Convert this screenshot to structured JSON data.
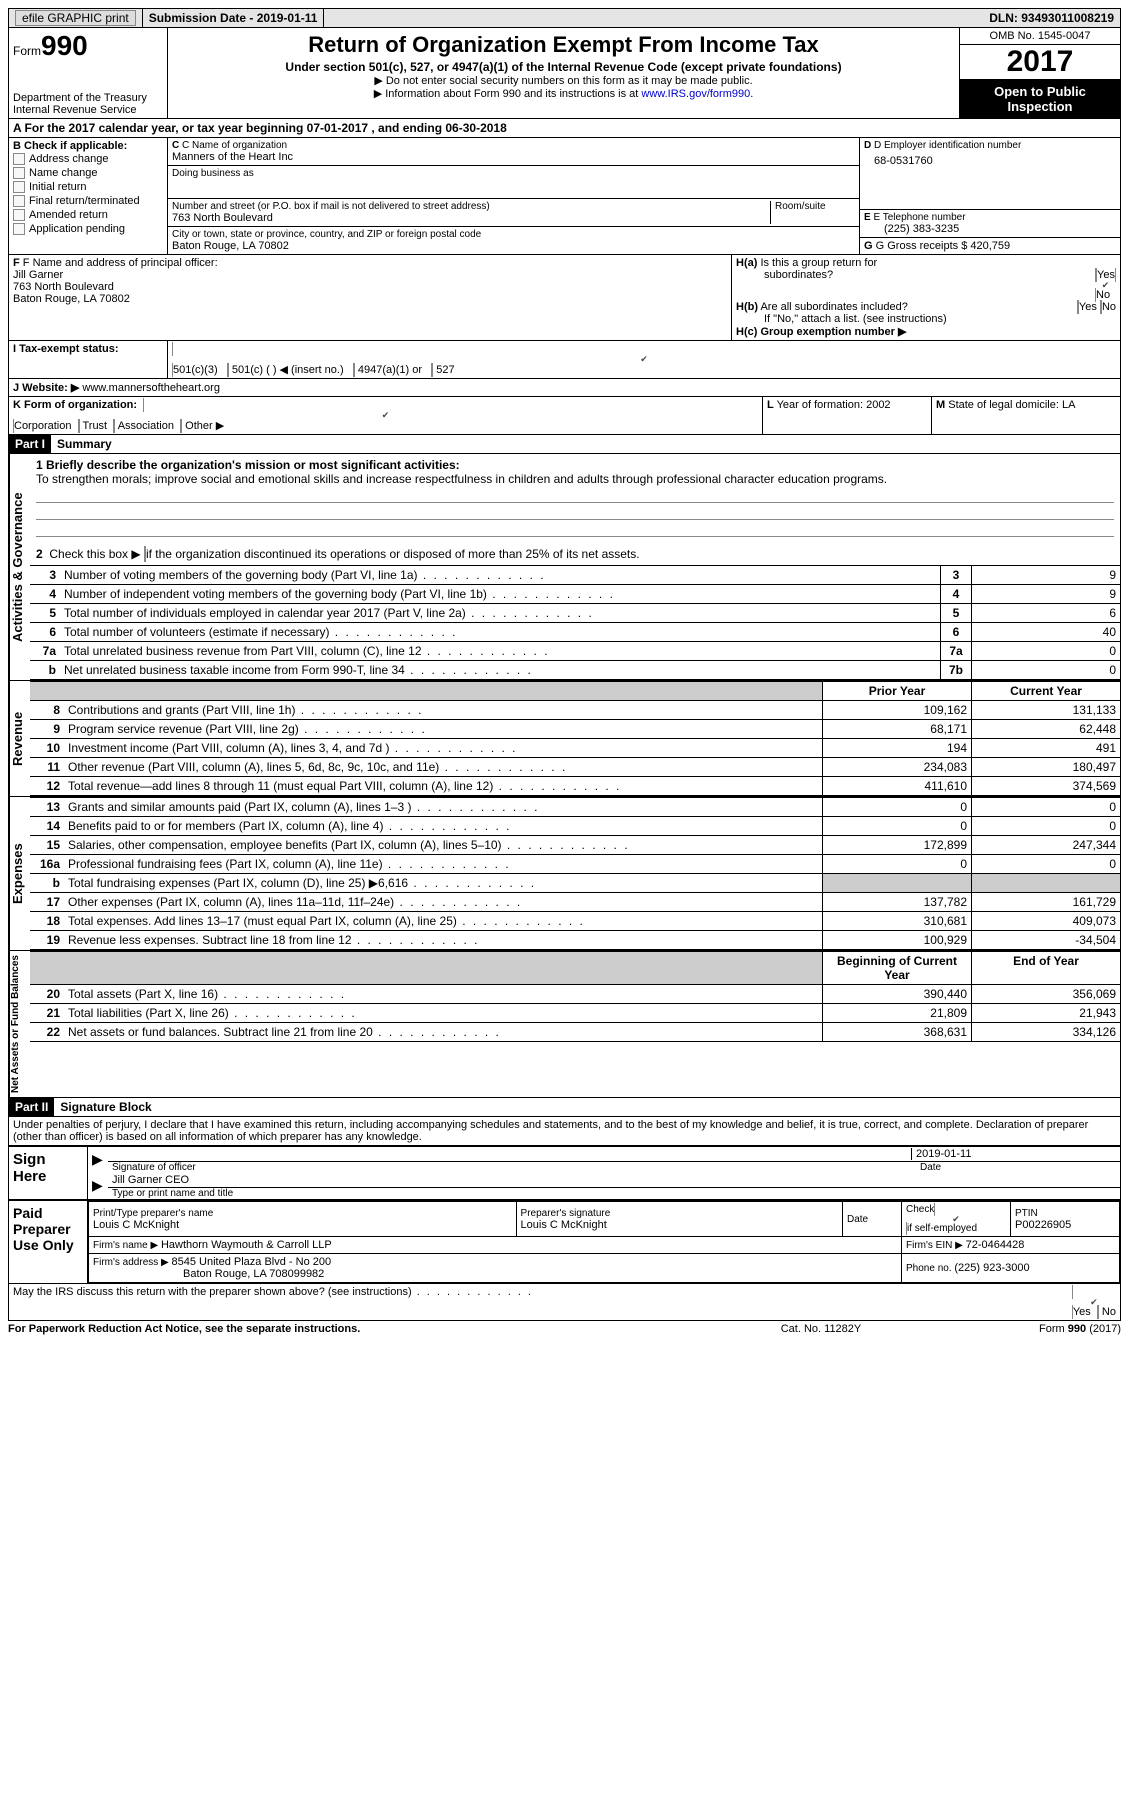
{
  "top": {
    "efile": "efile GRAPHIC print",
    "submission_label": "Submission Date - ",
    "submission_date": "2019-01-11",
    "dln_label": "DLN: ",
    "dln": "93493011008219"
  },
  "header": {
    "form_word": "Form",
    "form_num": "990",
    "dept": "Department of the Treasury",
    "irs": "Internal Revenue Service",
    "title": "Return of Organization Exempt From Income Tax",
    "subtitle": "Under section 501(c), 527, or 4947(a)(1) of the Internal Revenue Code (except private foundations)",
    "note1": "▶ Do not enter social security numbers on this form as it may be made public.",
    "note2_pre": "▶ Information about Form 990 and its instructions is at ",
    "note2_link": "www.IRS.gov/form990",
    "omb": "OMB No. 1545-0047",
    "year": "2017",
    "open": "Open to Public Inspection"
  },
  "rowA": "A   For the 2017 calendar year, or tax year beginning 07-01-2017   , and ending 06-30-2018",
  "B": {
    "hdr": "B Check if applicable:",
    "items": [
      "Address change",
      "Name change",
      "Initial return",
      "Final return/terminated",
      "Amended return",
      "Application pending"
    ],
    "C_label": "C Name of organization",
    "C_name": "Manners of the Heart Inc",
    "dba": "Doing business as",
    "street_label": "Number and street (or P.O. box if mail is not delivered to street address)",
    "room": "Room/suite",
    "street": "763 North Boulevard",
    "city_label": "City or town, state or province, country, and ZIP or foreign postal code",
    "city": "Baton Rouge, LA  70802",
    "D_label": "D Employer identification number",
    "D_val": "68-0531760",
    "E_label": "E Telephone number",
    "E_val": "(225) 383-3235",
    "G_label": "G Gross receipts $ ",
    "G_val": "420,759",
    "F_label": "F  Name and address of principal officer:",
    "F_name": "Jill Garner",
    "F_addr1": "763 North Boulevard",
    "F_addr2": "Baton Rouge, LA  70802",
    "Ha_label": "H(a)  Is this a group return for",
    "Ha_sub": "subordinates?",
    "Hb_label": "H(b)  Are all subordinates included?",
    "Hb_note": "If \"No,\" attach a list. (see instructions)",
    "Hc_label": "H(c)  Group exemption number ▶",
    "yes": "Yes",
    "no": "No"
  },
  "I": {
    "label": "I  Tax-exempt status:",
    "o1": "501(c)(3)",
    "o2": "501(c) (  ) ◀ (insert no.)",
    "o3": "4947(a)(1) or",
    "o4": "527"
  },
  "J": {
    "label": "J  Website: ▶ ",
    "val": "www.mannersoftheheart.org"
  },
  "K": {
    "label": "K Form of organization:",
    "o1": "Corporation",
    "o2": "Trust",
    "o3": "Association",
    "o4": "Other ▶",
    "L_label": "L Year of formation: ",
    "L_val": "2002",
    "M_label": "M State of legal domicile: ",
    "M_val": "LA"
  },
  "part1": {
    "tag": "Part I",
    "title": "Summary",
    "side_ag": "Activities & Governance",
    "side_rev": "Revenue",
    "side_exp": "Expenses",
    "side_na": "Net Assets or Fund Balances",
    "l1": "1 Briefly describe the organization's mission or most significant activities:",
    "l1_text": "To strengthen morals; improve social and emotional skills and increase respectfulness in children and adults through professional character education programs.",
    "l2": "2   Check this box ▶        if the organization discontinued its operations or disposed of more than 25% of its net assets.",
    "rows_ag": [
      {
        "n": "3",
        "t": "Number of voting members of the governing body (Part VI, line 1a)",
        "b": "3",
        "v": "9"
      },
      {
        "n": "4",
        "t": "Number of independent voting members of the governing body (Part VI, line 1b)",
        "b": "4",
        "v": "9"
      },
      {
        "n": "5",
        "t": "Total number of individuals employed in calendar year 2017 (Part V, line 2a)",
        "b": "5",
        "v": "6"
      },
      {
        "n": "6",
        "t": "Total number of volunteers (estimate if necessary)",
        "b": "6",
        "v": "40"
      },
      {
        "n": "7a",
        "t": "Total unrelated business revenue from Part VIII, column (C), line 12",
        "b": "7a",
        "v": "0"
      },
      {
        "n": "b",
        "t": "Net unrelated business taxable income from Form 990-T, line 34",
        "b": "7b",
        "v": "0"
      }
    ],
    "hdr_prior": "Prior Year",
    "hdr_curr": "Current Year",
    "rows_rev": [
      {
        "n": "8",
        "t": "Contributions and grants (Part VIII, line 1h)",
        "p": "109,162",
        "c": "131,133"
      },
      {
        "n": "9",
        "t": "Program service revenue (Part VIII, line 2g)",
        "p": "68,171",
        "c": "62,448"
      },
      {
        "n": "10",
        "t": "Investment income (Part VIII, column (A), lines 3, 4, and 7d )",
        "p": "194",
        "c": "491"
      },
      {
        "n": "11",
        "t": "Other revenue (Part VIII, column (A), lines 5, 6d, 8c, 9c, 10c, and 11e)",
        "p": "234,083",
        "c": "180,497"
      },
      {
        "n": "12",
        "t": "Total revenue—add lines 8 through 11 (must equal Part VIII, column (A), line 12)",
        "p": "411,610",
        "c": "374,569"
      }
    ],
    "rows_exp": [
      {
        "n": "13",
        "t": "Grants and similar amounts paid (Part IX, column (A), lines 1–3 )",
        "p": "0",
        "c": "0"
      },
      {
        "n": "14",
        "t": "Benefits paid to or for members (Part IX, column (A), line 4)",
        "p": "0",
        "c": "0"
      },
      {
        "n": "15",
        "t": "Salaries, other compensation, employee benefits (Part IX, column (A), lines 5–10)",
        "p": "172,899",
        "c": "247,344"
      },
      {
        "n": "16a",
        "t": "Professional fundraising fees (Part IX, column (A), line 11e)",
        "p": "0",
        "c": "0"
      },
      {
        "n": "b",
        "t": "Total fundraising expenses (Part IX, column (D), line 25) ▶6,616",
        "p": "",
        "c": "",
        "shade": true
      },
      {
        "n": "17",
        "t": "Other expenses (Part IX, column (A), lines 11a–11d, 11f–24e)",
        "p": "137,782",
        "c": "161,729"
      },
      {
        "n": "18",
        "t": "Total expenses. Add lines 13–17 (must equal Part IX, column (A), line 25)",
        "p": "310,681",
        "c": "409,073"
      },
      {
        "n": "19",
        "t": "Revenue less expenses. Subtract line 18 from line 12",
        "p": "100,929",
        "c": "-34,504"
      }
    ],
    "hdr_beg": "Beginning of Current Year",
    "hdr_end": "End of Year",
    "rows_na": [
      {
        "n": "20",
        "t": "Total assets (Part X, line 16)",
        "p": "390,440",
        "c": "356,069"
      },
      {
        "n": "21",
        "t": "Total liabilities (Part X, line 26)",
        "p": "21,809",
        "c": "21,943"
      },
      {
        "n": "22",
        "t": "Net assets or fund balances. Subtract line 21 from line 20",
        "p": "368,631",
        "c": "334,126"
      }
    ]
  },
  "part2": {
    "tag": "Part II",
    "title": "Signature Block",
    "decl": "Under penalties of perjury, I declare that I have examined this return, including accompanying schedules and statements, and to the best of my knowledge and belief, it is true, correct, and complete. Declaration of preparer (other than officer) is based on all information of which preparer has any knowledge.",
    "sign_here": "Sign Here",
    "sig_officer": "Signature of officer",
    "date": "Date",
    "date_val": "2019-01-11",
    "officer_name": "Jill Garner CEO",
    "type_name": "Type or print name and title",
    "paid": "Paid Preparer Use Only",
    "prep_name_l": "Print/Type preparer's name",
    "prep_name": "Louis C McKnight",
    "prep_sig_l": "Preparer's signature",
    "prep_sig": "Louis C McKnight",
    "check_l": "Check         if self-employed",
    "ptin_l": "PTIN",
    "ptin": "P00226905",
    "firm_l": "Firm's name      ▶ ",
    "firm": "Hawthorn Waymouth & Carroll LLP",
    "firm_ein_l": "Firm's EIN ▶ ",
    "firm_ein": "72-0464428",
    "firm_addr_l": "Firm's address ▶ ",
    "firm_addr1": "8545 United Plaza Blvd - No 200",
    "firm_addr2": "Baton Rouge, LA  708099982",
    "phone_l": "Phone no. ",
    "phone": "(225) 923-3000",
    "discuss": "May the IRS discuss this return with the preparer shown above? (see instructions)"
  },
  "footer": {
    "left": "For Paperwork Reduction Act Notice, see the separate instructions.",
    "mid": "Cat. No. 11282Y",
    "right": "Form 990 (2017)"
  }
}
